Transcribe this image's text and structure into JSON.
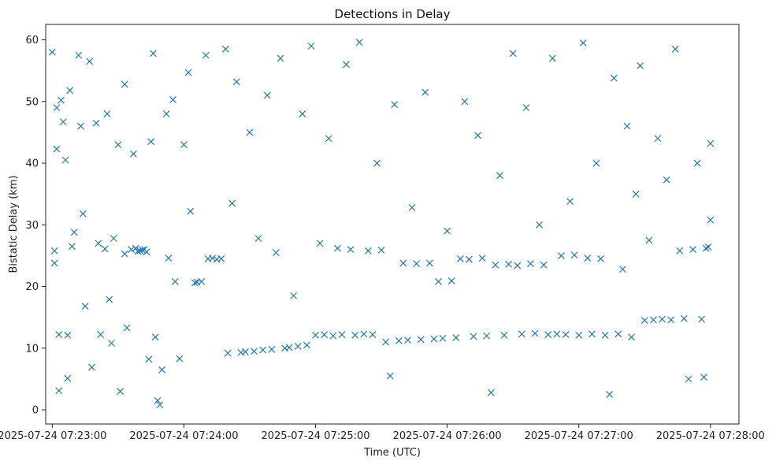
{
  "chart_data": {
    "type": "scatter",
    "title": "Detections in Delay",
    "xlabel": "Time (UTC)",
    "ylabel": "Bistatic Delay (km)",
    "x_unit": "time",
    "xlim": [
      "2025-07-24 07:22:57",
      "2025-07-24 07:28:13"
    ],
    "ylim": [
      -2.3,
      62.5
    ],
    "x_ticks": [
      "2025-07-24 07:23:00",
      "2025-07-24 07:24:00",
      "2025-07-24 07:25:00",
      "2025-07-24 07:26:00",
      "2025-07-24 07:27:00",
      "2025-07-24 07:28:00"
    ],
    "y_ticks": [
      "0",
      "10",
      "20",
      "30",
      "40",
      "50",
      "60"
    ],
    "marker": "x",
    "color": "#1f77b4",
    "grid": false,
    "legend": "none",
    "series": [
      {
        "points": [
          [
            "07:23:00",
            58.0
          ],
          [
            "07:23:01",
            23.8
          ],
          [
            "07:23:01",
            25.8
          ],
          [
            "07:23:02",
            42.3
          ],
          [
            "07:23:02",
            49.0
          ],
          [
            "07:23:03",
            12.2
          ],
          [
            "07:23:03",
            3.1
          ],
          [
            "07:23:04",
            50.2
          ],
          [
            "07:23:05",
            46.7
          ],
          [
            "07:23:06",
            40.5
          ],
          [
            "07:23:07",
            12.1
          ],
          [
            "07:23:07",
            5.1
          ],
          [
            "07:23:08",
            51.8
          ],
          [
            "07:23:09",
            26.5
          ],
          [
            "07:23:10",
            28.8
          ],
          [
            "07:23:12",
            57.5
          ],
          [
            "07:23:13",
            46.0
          ],
          [
            "07:23:14",
            31.8
          ],
          [
            "07:23:15",
            16.8
          ],
          [
            "07:23:17",
            56.5
          ],
          [
            "07:23:18",
            6.9
          ],
          [
            "07:23:20",
            46.5
          ],
          [
            "07:23:21",
            27.0
          ],
          [
            "07:23:22",
            12.2
          ],
          [
            "07:23:24",
            26.1
          ],
          [
            "07:23:25",
            48.0
          ],
          [
            "07:23:26",
            17.9
          ],
          [
            "07:23:27",
            10.8
          ],
          [
            "07:23:28",
            27.8
          ],
          [
            "07:23:30",
            43.0
          ],
          [
            "07:23:31",
            3.0
          ],
          [
            "07:23:33",
            52.8
          ],
          [
            "07:23:33",
            25.3
          ],
          [
            "07:23:34",
            13.3
          ],
          [
            "07:23:36",
            26.0
          ],
          [
            "07:23:37",
            41.5
          ],
          [
            "07:23:38",
            26.2
          ],
          [
            "07:23:39",
            25.7
          ],
          [
            "07:23:40",
            25.8
          ],
          [
            "07:23:41",
            25.9
          ],
          [
            "07:23:42",
            26.0
          ],
          [
            "07:23:43",
            25.6
          ],
          [
            "07:23:44",
            8.2
          ],
          [
            "07:23:45",
            43.5
          ],
          [
            "07:23:46",
            57.8
          ],
          [
            "07:23:47",
            11.8
          ],
          [
            "07:23:48",
            1.5
          ],
          [
            "07:23:49",
            0.8
          ],
          [
            "07:23:50",
            6.5
          ],
          [
            "07:23:52",
            48.0
          ],
          [
            "07:23:53",
            24.6
          ],
          [
            "07:23:55",
            50.3
          ],
          [
            "07:23:56",
            20.8
          ],
          [
            "07:23:58",
            8.3
          ],
          [
            "07:24:00",
            43.0
          ],
          [
            "07:24:02",
            54.7
          ],
          [
            "07:24:03",
            32.2
          ],
          [
            "07:24:05",
            20.6
          ],
          [
            "07:24:06",
            20.7
          ],
          [
            "07:24:08",
            20.8
          ],
          [
            "07:24:10",
            57.5
          ],
          [
            "07:24:11",
            24.5
          ],
          [
            "07:24:13",
            24.6
          ],
          [
            "07:24:15",
            24.4
          ],
          [
            "07:24:17",
            24.5
          ],
          [
            "07:24:19",
            58.5
          ],
          [
            "07:24:20",
            9.2
          ],
          [
            "07:24:22",
            33.5
          ],
          [
            "07:24:24",
            53.2
          ],
          [
            "07:24:26",
            9.3
          ],
          [
            "07:24:28",
            9.4
          ],
          [
            "07:24:30",
            45.0
          ],
          [
            "07:24:32",
            9.5
          ],
          [
            "07:24:34",
            27.8
          ],
          [
            "07:24:36",
            9.7
          ],
          [
            "07:24:38",
            51.0
          ],
          [
            "07:24:40",
            9.8
          ],
          [
            "07:24:42",
            25.5
          ],
          [
            "07:24:44",
            57.0
          ],
          [
            "07:24:46",
            10.0
          ],
          [
            "07:24:48",
            10.1
          ],
          [
            "07:24:50",
            18.5
          ],
          [
            "07:24:52",
            10.3
          ],
          [
            "07:24:54",
            48.0
          ],
          [
            "07:24:56",
            10.5
          ],
          [
            "07:24:58",
            59.0
          ],
          [
            "07:25:00",
            12.1
          ],
          [
            "07:25:02",
            27.0
          ],
          [
            "07:25:04",
            12.2
          ],
          [
            "07:25:06",
            44.0
          ],
          [
            "07:25:08",
            12.0
          ],
          [
            "07:25:10",
            26.2
          ],
          [
            "07:25:12",
            12.2
          ],
          [
            "07:25:14",
            56.0
          ],
          [
            "07:25:16",
            26.0
          ],
          [
            "07:25:18",
            12.1
          ],
          [
            "07:25:20",
            59.6
          ],
          [
            "07:25:22",
            12.3
          ],
          [
            "07:25:24",
            25.8
          ],
          [
            "07:25:26",
            12.2
          ],
          [
            "07:25:28",
            40.0
          ],
          [
            "07:25:30",
            25.9
          ],
          [
            "07:25:32",
            11.0
          ],
          [
            "07:25:34",
            5.5
          ],
          [
            "07:25:36",
            49.5
          ],
          [
            "07:25:38",
            11.2
          ],
          [
            "07:25:40",
            23.8
          ],
          [
            "07:25:42",
            11.3
          ],
          [
            "07:25:44",
            32.8
          ],
          [
            "07:25:46",
            23.7
          ],
          [
            "07:25:48",
            11.4
          ],
          [
            "07:25:50",
            51.5
          ],
          [
            "07:25:52",
            23.8
          ],
          [
            "07:25:54",
            11.5
          ],
          [
            "07:25:56",
            20.8
          ],
          [
            "07:25:58",
            11.6
          ],
          [
            "07:26:00",
            29.0
          ],
          [
            "07:26:02",
            20.9
          ],
          [
            "07:26:04",
            11.7
          ],
          [
            "07:26:06",
            24.5
          ],
          [
            "07:26:08",
            50.0
          ],
          [
            "07:26:10",
            24.4
          ],
          [
            "07:26:12",
            11.9
          ],
          [
            "07:26:14",
            44.5
          ],
          [
            "07:26:16",
            24.6
          ],
          [
            "07:26:18",
            12.0
          ],
          [
            "07:26:20",
            2.8
          ],
          [
            "07:26:22",
            23.5
          ],
          [
            "07:26:24",
            38.0
          ],
          [
            "07:26:26",
            12.1
          ],
          [
            "07:26:28",
            23.6
          ],
          [
            "07:26:30",
            57.8
          ],
          [
            "07:26:32",
            23.4
          ],
          [
            "07:26:34",
            12.3
          ],
          [
            "07:26:36",
            49.0
          ],
          [
            "07:26:38",
            23.7
          ],
          [
            "07:26:40",
            12.4
          ],
          [
            "07:26:42",
            30.0
          ],
          [
            "07:26:44",
            23.5
          ],
          [
            "07:26:46",
            12.2
          ],
          [
            "07:26:48",
            57.0
          ],
          [
            "07:26:50",
            12.3
          ],
          [
            "07:26:52",
            25.0
          ],
          [
            "07:26:54",
            12.2
          ],
          [
            "07:26:56",
            33.8
          ],
          [
            "07:26:58",
            25.1
          ],
          [
            "07:27:00",
            12.1
          ],
          [
            "07:27:02",
            59.5
          ],
          [
            "07:27:04",
            24.6
          ],
          [
            "07:27:06",
            12.3
          ],
          [
            "07:27:08",
            40.0
          ],
          [
            "07:27:10",
            24.5
          ],
          [
            "07:27:12",
            12.1
          ],
          [
            "07:27:14",
            2.5
          ],
          [
            "07:27:16",
            53.8
          ],
          [
            "07:27:18",
            12.3
          ],
          [
            "07:27:20",
            22.8
          ],
          [
            "07:27:22",
            46.0
          ],
          [
            "07:27:24",
            11.8
          ],
          [
            "07:27:26",
            35.0
          ],
          [
            "07:27:28",
            55.8
          ],
          [
            "07:27:30",
            14.5
          ],
          [
            "07:27:32",
            27.5
          ],
          [
            "07:27:34",
            14.6
          ],
          [
            "07:27:36",
            44.0
          ],
          [
            "07:27:38",
            14.7
          ],
          [
            "07:27:40",
            37.3
          ],
          [
            "07:27:42",
            14.6
          ],
          [
            "07:27:44",
            58.5
          ],
          [
            "07:27:46",
            25.8
          ],
          [
            "07:27:48",
            14.8
          ],
          [
            "07:27:50",
            5.0
          ],
          [
            "07:27:52",
            26.0
          ],
          [
            "07:27:54",
            40.0
          ],
          [
            "07:27:56",
            14.7
          ],
          [
            "07:27:58",
            26.2
          ],
          [
            "07:28:00",
            43.2
          ],
          [
            "07:28:00",
            30.8
          ],
          [
            "07:27:59",
            26.4
          ],
          [
            "07:27:57",
            5.3
          ]
        ]
      }
    ]
  }
}
